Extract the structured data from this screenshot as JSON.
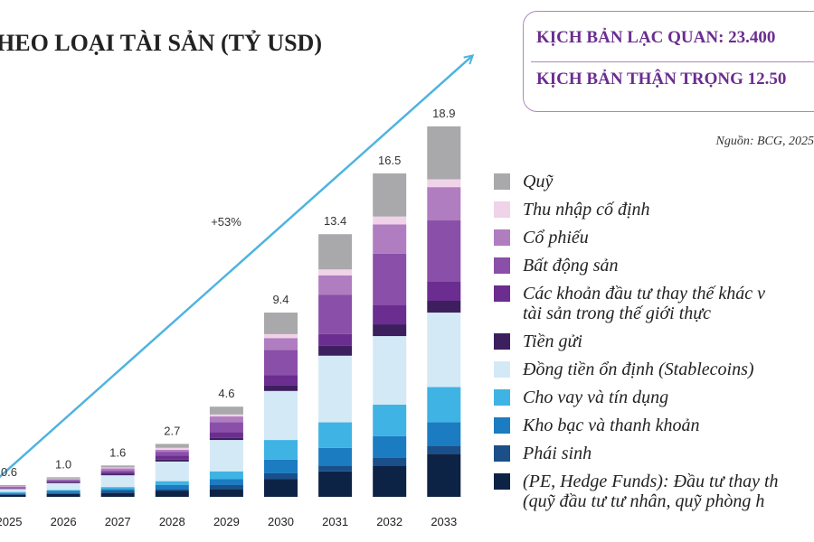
{
  "chart_data": {
    "type": "stacked-bar",
    "title": "HEO LOẠI TÀI SẢN (TỶ USD)",
    "scenarios": [
      "KỊCH BẢN LẠC QUAN: 23.400",
      "KỊCH BẢN THẬN TRỌNG 12.50"
    ],
    "source": "Nguồn: BCG, 2025",
    "annotation": "+53%",
    "categories": [
      "2025",
      "2026",
      "2027",
      "2028",
      "2029",
      "2030",
      "2031",
      "2032",
      "2033"
    ],
    "totals": [
      0.6,
      1.0,
      1.6,
      2.7,
      4.6,
      9.4,
      13.4,
      16.5,
      18.9
    ],
    "total_labels": [
      "0.6",
      "1.0",
      "1.6",
      "2.7",
      "4.6",
      "9.4",
      "13.4",
      "16.5",
      "18.9"
    ],
    "series": [
      {
        "name": "(PE, Hedge Funds): Đầu tư thay th\n(quỹ đầu tư tư nhân, quỹ phòng h",
        "color": "#0d2346",
        "values": [
          0.1,
          0.15,
          0.2,
          0.3,
          0.4,
          0.9,
          1.3,
          1.6,
          2.2
        ]
      },
      {
        "name": "Phái sinh",
        "color": "#1a4f8a",
        "values": [
          0.05,
          0.05,
          0.1,
          0.1,
          0.2,
          0.3,
          0.3,
          0.4,
          0.4
        ]
      },
      {
        "name": "Kho bạc và thanh khoản",
        "color": "#1b7cc2",
        "values": [
          0.05,
          0.1,
          0.1,
          0.2,
          0.3,
          0.7,
          0.9,
          1.1,
          1.2
        ]
      },
      {
        "name": "Cho vay và tín dụng",
        "color": "#3fb3e3",
        "values": [
          0.05,
          0.05,
          0.1,
          0.2,
          0.4,
          1.0,
          1.3,
          1.6,
          1.8
        ]
      },
      {
        "name": "Đồng tiền ổn định (Stablecoins)",
        "color": "#d4e9f6",
        "values": [
          0.15,
          0.35,
          0.6,
          1.0,
          1.6,
          2.5,
          3.4,
          3.5,
          3.8
        ]
      },
      {
        "name": "Tiền gửi",
        "color": "#3d1f5e",
        "values": [
          0.02,
          0.05,
          0.05,
          0.1,
          0.1,
          0.3,
          0.5,
          0.6,
          0.6
        ]
      },
      {
        "name": "Các khoản đầu tư thay thế khác v\ntài sản trong thế giới thực",
        "color": "#6b2d8f",
        "values": [
          0.03,
          0.05,
          0.1,
          0.2,
          0.3,
          0.5,
          0.6,
          1.0,
          1.0
        ]
      },
      {
        "name": "Bất động sản",
        "color": "#8a4fa8",
        "values": [
          0.05,
          0.05,
          0.1,
          0.2,
          0.5,
          1.3,
          2.0,
          2.6,
          3.1
        ]
      },
      {
        "name": "Cổ phiếu",
        "color": "#b07dc0",
        "values": [
          0.03,
          0.05,
          0.1,
          0.1,
          0.3,
          0.6,
          1.0,
          1.5,
          1.7
        ]
      },
      {
        "name": "Thu nhập cố định",
        "color": "#f0d3e8",
        "values": [
          0.02,
          0.03,
          0.05,
          0.1,
          0.1,
          0.2,
          0.3,
          0.4,
          0.4
        ]
      },
      {
        "name": "Quỹ",
        "color": "#a9a9ab",
        "values": [
          0.05,
          0.07,
          0.1,
          0.2,
          0.4,
          1.1,
          1.8,
          2.2,
          2.7
        ]
      }
    ]
  }
}
